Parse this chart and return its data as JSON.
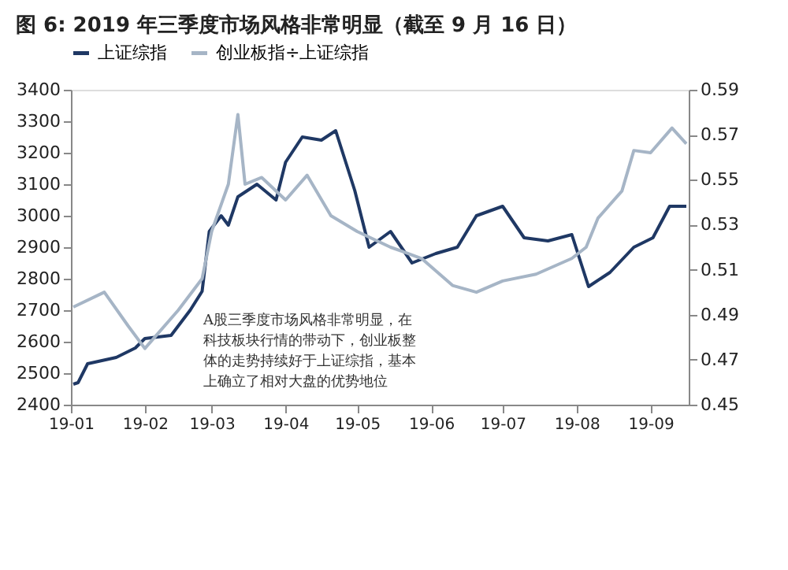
{
  "chart_data": {
    "type": "line",
    "title": "图 6: 2019 年三季度市场风格非常明显（截至 9 月 16 日）",
    "xlim": [
      "2019-01-01",
      "2019-09-17"
    ],
    "xticks": [
      {
        "value": "2019-01-01",
        "label": "19-01"
      },
      {
        "value": "2019-02-01",
        "label": "19-02"
      },
      {
        "value": "2019-03-01",
        "label": "19-03"
      },
      {
        "value": "2019-04-01",
        "label": "19-04"
      },
      {
        "value": "2019-05-01",
        "label": "19-05"
      },
      {
        "value": "2019-06-01",
        "label": "19-06"
      },
      {
        "value": "2019-07-01",
        "label": "19-07"
      },
      {
        "value": "2019-08-01",
        "label": "19-08"
      },
      {
        "value": "2019-09-01",
        "label": "19-09"
      }
    ],
    "ylim": [
      2400,
      3400
    ],
    "yticks": [
      2400,
      2500,
      2600,
      2700,
      2800,
      2900,
      3000,
      3100,
      3200,
      3300,
      3400
    ],
    "y2lim": [
      0.45,
      0.59
    ],
    "y2ticks": [
      0.45,
      0.47,
      0.49,
      0.51,
      0.53,
      0.55,
      0.57,
      0.59
    ],
    "legend": "top",
    "grid": false,
    "annotations": [
      "A股三季度市场风格非常明显，在科技板块行情的带动下，创业板整体的走势持续好于上证综指，基本上确立了相对大盘的优势地位"
    ],
    "series": [
      {
        "name": "上证综指",
        "color": "#1f3864",
        "x": [
          "2019-01-02",
          "2019-01-04",
          "2019-01-08",
          "2019-01-20",
          "2019-01-28",
          "2019-02-01",
          "2019-02-12",
          "2019-02-20",
          "2019-02-25",
          "2019-02-28",
          "2019-03-05",
          "2019-03-08",
          "2019-03-12",
          "2019-03-20",
          "2019-03-28",
          "2019-04-01",
          "2019-04-08",
          "2019-04-16",
          "2019-04-22",
          "2019-04-30",
          "2019-05-06",
          "2019-05-15",
          "2019-05-24",
          "2019-06-03",
          "2019-06-12",
          "2019-06-20",
          "2019-07-01",
          "2019-07-10",
          "2019-07-20",
          "2019-07-30",
          "2019-08-06",
          "2019-08-15",
          "2019-08-25",
          "2019-09-02",
          "2019-09-09",
          "2019-09-16"
        ],
        "values": [
          2465,
          2470,
          2530,
          2550,
          2580,
          2610,
          2620,
          2700,
          2760,
          2950,
          3000,
          2970,
          3060,
          3100,
          3050,
          3170,
          3250,
          3240,
          3270,
          3080,
          2900,
          2950,
          2850,
          2880,
          2900,
          3000,
          3030,
          2930,
          2920,
          2940,
          2775,
          2820,
          2900,
          2930,
          3030,
          3030
        ]
      },
      {
        "name": "创业板指÷上证综指",
        "color": "#a6b5c6",
        "axis": "y2",
        "x": [
          "2019-01-02",
          "2019-01-15",
          "2019-01-25",
          "2019-02-01",
          "2019-02-15",
          "2019-02-25",
          "2019-03-01",
          "2019-03-08",
          "2019-03-12",
          "2019-03-15",
          "2019-03-22",
          "2019-04-01",
          "2019-04-10",
          "2019-04-20",
          "2019-05-01",
          "2019-05-15",
          "2019-05-28",
          "2019-06-10",
          "2019-06-20",
          "2019-07-01",
          "2019-07-15",
          "2019-07-30",
          "2019-08-05",
          "2019-08-10",
          "2019-08-20",
          "2019-08-25",
          "2019-09-01",
          "2019-09-10",
          "2019-09-16"
        ],
        "values": [
          0.4934,
          0.5,
          0.485,
          0.475,
          0.492,
          0.506,
          0.527,
          0.548,
          0.579,
          0.548,
          0.551,
          0.541,
          0.552,
          0.534,
          0.527,
          0.52,
          0.515,
          0.503,
          0.5,
          0.505,
          0.508,
          0.515,
          0.52,
          0.533,
          0.545,
          0.563,
          0.562,
          0.573,
          0.566
        ]
      }
    ]
  }
}
